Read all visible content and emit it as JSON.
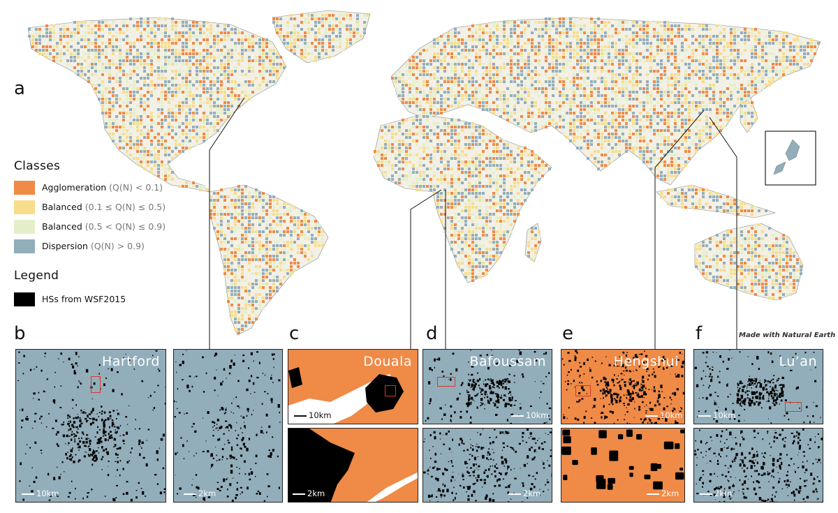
{
  "panels": {
    "a": "a",
    "b": "b",
    "c": "c",
    "d": "d",
    "e": "e",
    "f": "f"
  },
  "legend": {
    "classes_title": "Classes",
    "classes": [
      {
        "label": "Agglomeration",
        "condition": "(Q(N) < 0.1)",
        "color": "#ef8a47"
      },
      {
        "label": "Balanced",
        "condition": "(0.1 ≤ Q(N) ≤ 0.5)",
        "color": "#f7dd8c"
      },
      {
        "label": "Balanced",
        "condition": "(0.5 < Q(N) ≤ 0.9)",
        "color": "#e4efca"
      },
      {
        "label": "Dispersion",
        "condition": "(Q(N) > 0.9)",
        "color": "#93aebb"
      }
    ],
    "legend_title": "Legend",
    "legend_items": [
      {
        "label": "HSs from WSF2015",
        "color": "#000000"
      }
    ]
  },
  "credit": "Made with Natural Earth",
  "insets": {
    "hartford": {
      "city": "Hartford",
      "scale_overview": "10km",
      "scale_zoom": "2km",
      "class": "Dispersion"
    },
    "douala": {
      "city": "Douala",
      "scale_overview": "10km",
      "scale_zoom": "2km",
      "class": "Agglomeration"
    },
    "bafoussam": {
      "city": "Bafoussam",
      "scale_overview": "10km",
      "scale_zoom": "2km",
      "class": "Dispersion"
    },
    "hengshui": {
      "city": "Hengshui",
      "scale_overview": "10km",
      "scale_zoom": "2km",
      "class": "Agglomeration"
    },
    "luan": {
      "city": "Lu’an",
      "scale_overview": "10km",
      "scale_zoom": "2km",
      "class": "Dispersion"
    }
  },
  "colors": {
    "agglomeration": "#ef8a47",
    "balanced_low": "#f7dd8c",
    "balanced_high": "#e4efca",
    "dispersion": "#93aebb",
    "settlement": "#000000"
  }
}
